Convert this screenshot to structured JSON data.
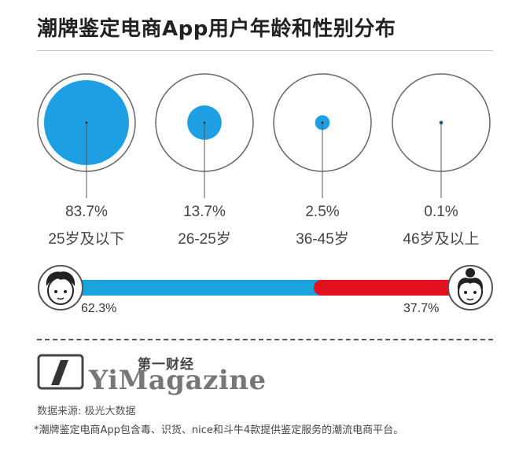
{
  "chart_data": [
    {
      "type": "bubble",
      "title": "潮牌鉴定电商App用户年龄和性别分布",
      "categories": [
        "25岁及以下",
        "26-25岁",
        "36-45岁",
        "46岁及以上"
      ],
      "values": [
        83.7,
        13.7,
        2.5,
        0.1
      ],
      "value_labels": [
        "83.7%",
        "13.7%",
        "2.5%",
        "0.1%"
      ],
      "colors": {
        "fill": "#1f9fe3",
        "outline": "#666666"
      }
    },
    {
      "type": "bar",
      "orientation": "horizontal-stacked",
      "series": [
        {
          "icon": "male-face-icon",
          "value": 62.3,
          "label": "62.3%",
          "color": "#1ba3de"
        },
        {
          "icon": "female-face-icon",
          "value": 37.7,
          "label": "37.7%",
          "color": "#e3101f"
        }
      ]
    }
  ],
  "branding": {
    "logo_cn": "第一财经",
    "logo_en": "YiMagazine"
  },
  "footer": {
    "source": "数据来源: 极光大数据",
    "note": "*潮牌鉴定电商App包含毒、识货、nice和斗牛4款提供鉴定服务的潮流电商平台。"
  }
}
